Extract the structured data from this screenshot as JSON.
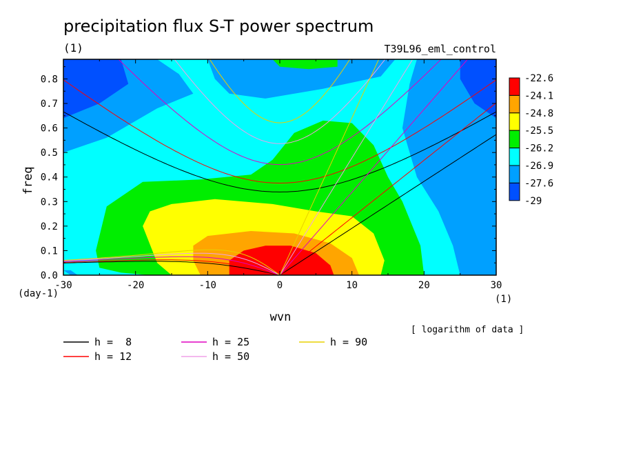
{
  "chart_data": {
    "type": "heatmap",
    "title": "precipitation flux S-T power spectrum",
    "subtitle_left": "(1)",
    "subtitle_right": "T39L96_eml_control",
    "xlabel": "wvn",
    "ylabel": "freq",
    "x_unit": "(1)",
    "y_unit": "(day-1)",
    "xlim": [
      -30,
      30
    ],
    "ylim": [
      0,
      0.88
    ],
    "x_ticks": [
      "-30",
      "-20",
      "-10",
      "0",
      "10",
      "20",
      "30"
    ],
    "x_tick_values": [
      -30,
      -20,
      -10,
      0,
      10,
      20,
      30
    ],
    "y_ticks": [
      "0.0",
      "0.1",
      "0.2",
      "0.3",
      "0.4",
      "0.5",
      "0.6",
      "0.7",
      "0.8"
    ],
    "y_tick_values": [
      0,
      0.1,
      0.2,
      0.3,
      0.4,
      0.5,
      0.6,
      0.7,
      0.8
    ],
    "colorbar": {
      "levels": [
        "-22.6",
        "-24.1",
        "-24.8",
        "-25.5",
        "-26.2",
        "-26.9",
        "-27.6",
        "-29"
      ],
      "colors": [
        "#ff0000",
        "#ffa500",
        "#ffff00",
        "#00ee00",
        "#00ffff",
        "#00a0ff",
        "#0050ff"
      ],
      "note": "[ logarithm of data ]"
    },
    "background_color": "#00ffff",
    "regions": [
      {
        "level": "-27.6",
        "color": "#00a0ff",
        "points": [
          [
            -30,
            0.88
          ],
          [
            -17,
            0.88
          ],
          [
            -14,
            0.82
          ],
          [
            -12,
            0.74
          ],
          [
            -17,
            0.68
          ],
          [
            -24,
            0.56
          ],
          [
            -30,
            0.5
          ]
        ]
      },
      {
        "level": "-29",
        "color": "#0050ff",
        "points": [
          [
            -30,
            0.88
          ],
          [
            -22,
            0.88
          ],
          [
            -21,
            0.78
          ],
          [
            -25,
            0.7
          ],
          [
            -30,
            0.64
          ]
        ]
      },
      {
        "level": "-27.6",
        "color": "#00a0ff",
        "points": [
          [
            -10,
            0.88
          ],
          [
            -9,
            0.8
          ],
          [
            -7,
            0.74
          ],
          [
            -2,
            0.72
          ],
          [
            6,
            0.76
          ],
          [
            14,
            0.81
          ],
          [
            16,
            0.88
          ]
        ]
      },
      {
        "level": "-26.2",
        "color": "#00ee00",
        "points": [
          [
            -1,
            0.88
          ],
          [
            0,
            0.85
          ],
          [
            4,
            0.84
          ],
          [
            8,
            0.85
          ],
          [
            8,
            0.88
          ]
        ]
      },
      {
        "level": "-27.6",
        "color": "#00a0ff",
        "points": [
          [
            30,
            0.88
          ],
          [
            19,
            0.88
          ],
          [
            18,
            0.78
          ],
          [
            17,
            0.6
          ],
          [
            19,
            0.4
          ],
          [
            22,
            0.26
          ],
          [
            24,
            0.12
          ],
          [
            25,
            0
          ],
          [
            30,
            0
          ]
        ]
      },
      {
        "level": "-29",
        "color": "#0050ff",
        "points": [
          [
            30,
            0.88
          ],
          [
            25,
            0.88
          ],
          [
            25,
            0.8
          ],
          [
            27,
            0.7
          ],
          [
            30,
            0.64
          ]
        ]
      },
      {
        "level": "-27.6",
        "color": "#00a0ff",
        "points": [
          [
            -30,
            0.02
          ],
          [
            -29,
            0
          ],
          [
            -28,
            0
          ],
          [
            -29,
            0.02
          ]
        ]
      },
      {
        "level": "-26.2",
        "color": "#00ee00",
        "points": [
          [
            -25,
            0.03
          ],
          [
            -25.5,
            0.1
          ],
          [
            -24,
            0.28
          ],
          [
            -19,
            0.38
          ],
          [
            -11,
            0.39
          ],
          [
            -4,
            0.41
          ],
          [
            -1,
            0.47
          ],
          [
            2,
            0.58
          ],
          [
            6,
            0.63
          ],
          [
            10,
            0.62
          ],
          [
            13,
            0.53
          ],
          [
            15,
            0.4
          ],
          [
            17,
            0.3
          ],
          [
            19.5,
            0.12
          ],
          [
            20,
            0
          ],
          [
            -18,
            0
          ],
          [
            -22,
            0.01
          ]
        ]
      },
      {
        "level": "-25.5",
        "color": "#ffff00",
        "points": [
          [
            -19,
            0.2
          ],
          [
            -18,
            0.26
          ],
          [
            -15,
            0.29
          ],
          [
            -9,
            0.31
          ],
          [
            -1,
            0.29
          ],
          [
            5,
            0.26
          ],
          [
            10,
            0.24
          ],
          [
            13,
            0.17
          ],
          [
            14.5,
            0.06
          ],
          [
            14,
            0
          ],
          [
            -15,
            0
          ],
          [
            -17,
            0.05
          ]
        ]
      },
      {
        "level": "-24.8",
        "color": "#ffa500",
        "points": [
          [
            -12,
            0.06
          ],
          [
            -12,
            0.12
          ],
          [
            -10,
            0.16
          ],
          [
            -4,
            0.18
          ],
          [
            2,
            0.17
          ],
          [
            7,
            0.13
          ],
          [
            10,
            0.07
          ],
          [
            11,
            0
          ],
          [
            -11,
            0
          ]
        ]
      },
      {
        "level": "-24.1",
        "color": "#ff0000",
        "points": [
          [
            -7,
            0
          ],
          [
            -7,
            0.06
          ],
          [
            -5,
            0.1
          ],
          [
            -2,
            0.12
          ],
          [
            1.5,
            0.12
          ],
          [
            5,
            0.09
          ],
          [
            7,
            0.04
          ],
          [
            7.5,
            0
          ]
        ]
      }
    ],
    "series": [
      {
        "name": "h =  8",
        "h": 8,
        "color": "#000000"
      },
      {
        "name": "h = 12",
        "h": 12,
        "color": "#ff0000"
      },
      {
        "name": "h = 25",
        "h": 25,
        "color": "#e000c0"
      },
      {
        "name": "h = 50",
        "h": 50,
        "color": "#f0a0e8"
      },
      {
        "name": "h = 90",
        "h": 90,
        "color": "#e8d000"
      }
    ]
  }
}
